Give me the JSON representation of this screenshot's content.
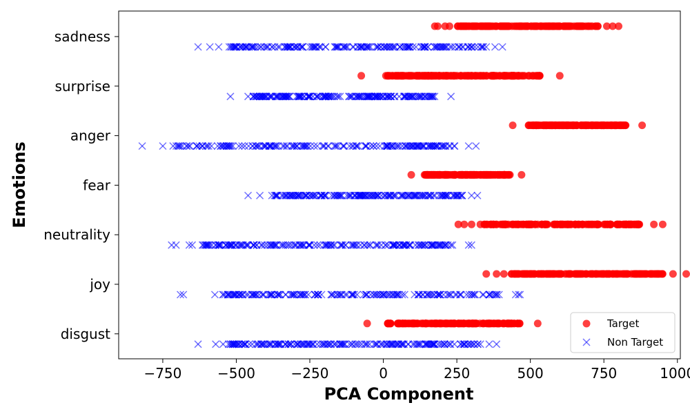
{
  "chart_data": {
    "type": "scatter",
    "xlabel": "PCA Component",
    "ylabel": "Emotions",
    "xlim": [
      -900,
      1010
    ],
    "xticks": [
      -750,
      -500,
      -250,
      0,
      250,
      500,
      750,
      1000
    ],
    "xtick_labels": [
      "−750",
      "−500",
      "−250",
      "0",
      "250",
      "500",
      "750",
      "1000"
    ],
    "categories": [
      "sadness",
      "surprise",
      "anger",
      "fear",
      "neutrality",
      "joy",
      "disgust"
    ],
    "grid": false,
    "legend_position": "bottom-right",
    "series": [
      {
        "name": "Target",
        "marker": "circle",
        "color": "#ff0000",
        "ranges": {
          "sadness": [
            175,
            800
          ],
          "surprise": [
            -75,
            600
          ],
          "anger": [
            440,
            880
          ],
          "fear": [
            95,
            470
          ],
          "neutrality": [
            255,
            950
          ],
          "joy": [
            350,
            1030
          ],
          "disgust": [
            -55,
            525
          ]
        },
        "outliers": {
          "sadness": [
            175,
            185,
            210,
            225,
            290,
            320,
            760,
            780,
            800
          ],
          "surprise": [
            -75,
            30,
            50,
            65,
            90,
            120,
            530,
            600
          ],
          "anger": [
            440,
            880
          ],
          "fear": [
            95,
            140,
            470
          ],
          "neutrality": [
            255,
            275,
            300,
            330,
            350,
            860,
            920,
            950
          ],
          "joy": [
            350,
            385,
            410,
            925,
            985,
            1030
          ],
          "disgust": [
            -55,
            65,
            100,
            150,
            175,
            525
          ]
        }
      },
      {
        "name": "Non Target",
        "marker": "x",
        "color": "#0000ff",
        "ranges": {
          "sadness": [
            -630,
            405
          ],
          "surprise": [
            -520,
            230
          ],
          "anger": [
            -820,
            315
          ],
          "fear": [
            -460,
            320
          ],
          "neutrality": [
            -720,
            300
          ],
          "joy": [
            -690,
            465
          ],
          "disgust": [
            -630,
            385
          ]
        },
        "outliers": {
          "sadness": [
            -630,
            -590,
            -560,
            -510,
            -500,
            350,
            380,
            405
          ],
          "surprise": [
            -520,
            -460,
            -440,
            230
          ],
          "anger": [
            -820,
            -750,
            -715,
            -690,
            290,
            315
          ],
          "fear": [
            -460,
            -420,
            300,
            320
          ],
          "neutrality": [
            -720,
            -705,
            -660,
            -650,
            290,
            300
          ],
          "joy": [
            -690,
            -680,
            300,
            360,
            450,
            460,
            465
          ],
          "disgust": [
            -630,
            -570,
            -545,
            -520,
            -500,
            330,
            360,
            385
          ]
        }
      }
    ]
  }
}
